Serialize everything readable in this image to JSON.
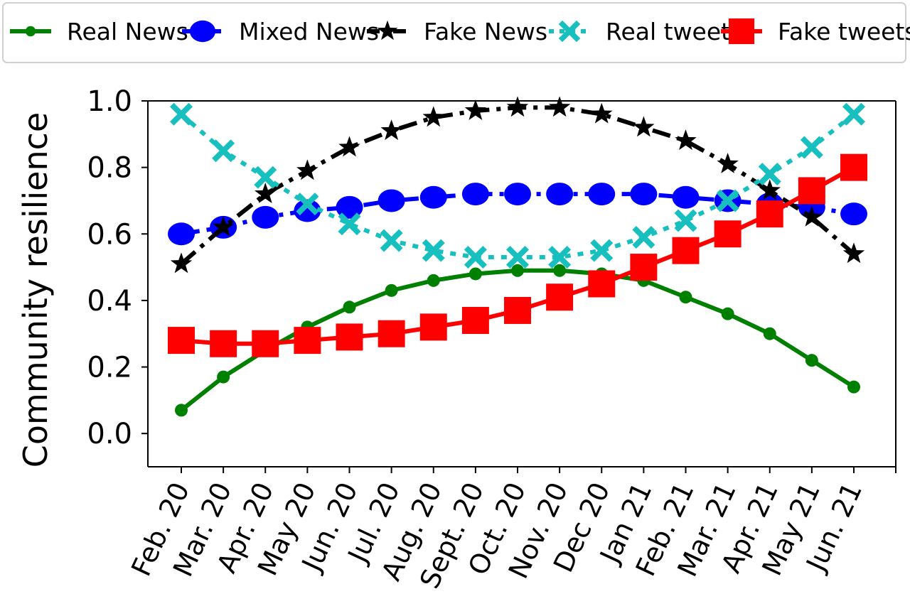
{
  "chart_data": {
    "type": "line",
    "ylabel": "Community resilience",
    "ylim": [
      -0.1,
      1.0
    ],
    "yticks": [
      "0.0",
      "0.2",
      "0.4",
      "0.6",
      "0.8",
      "1.0"
    ],
    "categories": [
      "Feb. 20",
      "Mar. 20",
      "Apr. 20",
      "May 20",
      "Jun. 20",
      "Jul. 20",
      "Aug. 20",
      "Sept. 20",
      "Oct. 20",
      "Nov. 20",
      "Dec 20",
      "Jan 21",
      "Feb. 21",
      "Mar. 21",
      "Apr. 21",
      "May 21",
      "Jun. 21"
    ],
    "legend_position": "top",
    "grid": false,
    "series": [
      {
        "name": "Real News",
        "color": "#008000",
        "marker": "dot",
        "dash": "solid",
        "values": [
          0.07,
          0.17,
          0.25,
          0.32,
          0.38,
          0.43,
          0.46,
          0.48,
          0.49,
          0.49,
          0.48,
          0.46,
          0.41,
          0.36,
          0.3,
          0.22,
          0.14
        ]
      },
      {
        "name": "Mixed News",
        "color": "#0000ff",
        "marker": "ellipse",
        "dash": "dashdot",
        "values": [
          0.6,
          0.62,
          0.65,
          0.67,
          0.68,
          0.7,
          0.71,
          0.72,
          0.72,
          0.72,
          0.72,
          0.72,
          0.71,
          0.7,
          0.69,
          0.68,
          0.66
        ]
      },
      {
        "name": "Fake News",
        "color": "#000000",
        "marker": "star",
        "dash": "dashdot",
        "values": [
          0.51,
          0.62,
          0.72,
          0.79,
          0.86,
          0.91,
          0.95,
          0.97,
          0.98,
          0.98,
          0.96,
          0.92,
          0.88,
          0.81,
          0.73,
          0.65,
          0.54
        ]
      },
      {
        "name": "Real tweets",
        "color": "#17bfbf",
        "marker": "x",
        "dash": "dotted",
        "values": [
          0.96,
          0.85,
          0.77,
          0.69,
          0.63,
          0.58,
          0.55,
          0.53,
          0.53,
          0.53,
          0.55,
          0.59,
          0.64,
          0.7,
          0.78,
          0.86,
          0.96
        ]
      },
      {
        "name": "Fake tweets",
        "color": "#ff0000",
        "marker": "square",
        "dash": "solid",
        "values": [
          0.28,
          0.27,
          0.27,
          0.28,
          0.29,
          0.3,
          0.32,
          0.34,
          0.37,
          0.41,
          0.45,
          0.5,
          0.55,
          0.6,
          0.66,
          0.73,
          0.8
        ]
      }
    ]
  }
}
